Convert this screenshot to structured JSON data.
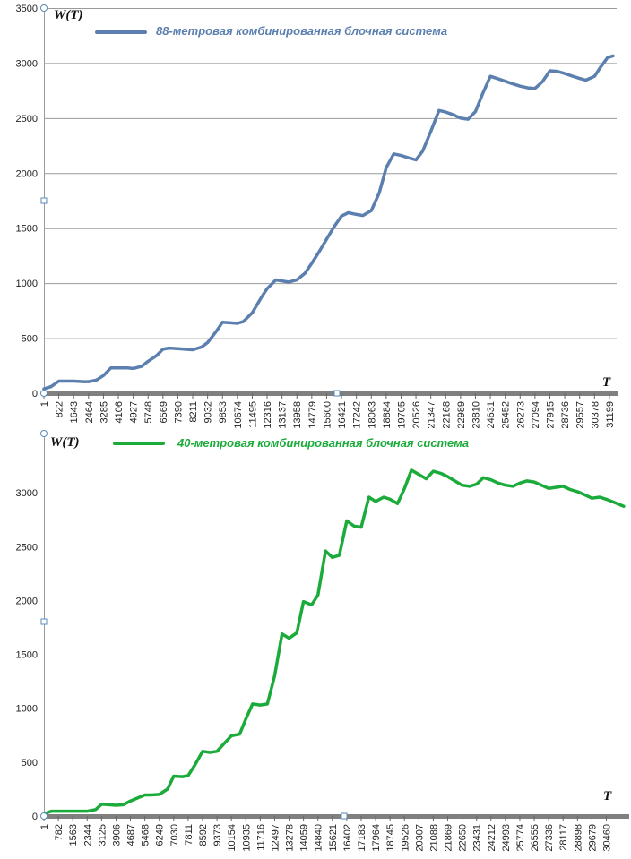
{
  "chart_data": [
    {
      "type": "line",
      "ylabel": "W(T)",
      "xlabel": "T",
      "ylim": [
        0,
        3500
      ],
      "yticks": [
        0,
        500,
        1000,
        1500,
        2000,
        2500,
        3000,
        3500
      ],
      "grid": true,
      "legend_position": "top-left",
      "xlim": [
        1,
        31600
      ],
      "xticks": [
        1,
        822,
        1643,
        2464,
        3285,
        4106,
        4927,
        5748,
        6569,
        7390,
        8211,
        9032,
        9853,
        10674,
        11495,
        12316,
        13137,
        13958,
        14779,
        15600,
        16421,
        17242,
        18063,
        18884,
        19705,
        20526,
        21347,
        22168,
        22989,
        23810,
        24631,
        25452,
        26273,
        27094,
        27915,
        28736,
        29557,
        30378,
        31199
      ],
      "series": [
        {
          "name": "88-метровая комбинированная блочная система",
          "color": "#5b7fae",
          "x": [
            1,
            400,
            822,
            1100,
            1643,
            2200,
            2464,
            2900,
            3285,
            3700,
            4106,
            4600,
            4927,
            5400,
            5748,
            6200,
            6569,
            6900,
            7390,
            7800,
            8211,
            8700,
            9032,
            9500,
            9853,
            10300,
            10674,
            11000,
            11495,
            12000,
            12316,
            12800,
            13137,
            13500,
            13958,
            14400,
            14779,
            15200,
            15600,
            16000,
            16421,
            16800,
            17242,
            17600,
            18063,
            18500,
            18884,
            19300,
            19705,
            20100,
            20526,
            20900,
            21347,
            21800,
            22168,
            22600,
            22989,
            23400,
            23810,
            24200,
            24631,
            25000,
            25452,
            25800,
            26273,
            26700,
            27094,
            27500,
            27915,
            28300,
            28736,
            29100,
            29557,
            29900,
            30378,
            30700,
            31100,
            31400
          ],
          "values": [
            40,
            60,
            110,
            110,
            110,
            105,
            105,
            120,
            160,
            230,
            230,
            230,
            225,
            245,
            290,
            340,
            400,
            410,
            405,
            400,
            395,
            420,
            460,
            560,
            645,
            640,
            635,
            650,
            730,
            870,
            950,
            1030,
            1020,
            1010,
            1030,
            1090,
            1180,
            1290,
            1400,
            1510,
            1610,
            1640,
            1625,
            1615,
            1660,
            1820,
            2050,
            2175,
            2160,
            2140,
            2120,
            2200,
            2380,
            2570,
            2555,
            2530,
            2500,
            2490,
            2560,
            2720,
            2880,
            2860,
            2835,
            2815,
            2790,
            2775,
            2770,
            2830,
            2930,
            2925,
            2905,
            2885,
            2860,
            2845,
            2880,
            2960,
            3050,
            3065
          ]
        }
      ]
    },
    {
      "type": "line",
      "ylabel": "W(T)",
      "xlabel": "T",
      "ylim": [
        0,
        3500
      ],
      "yticks": [
        0,
        500,
        1000,
        1500,
        2000,
        2500,
        3000
      ],
      "grid": false,
      "legend_position": "top-left",
      "xlim": [
        1,
        31600
      ],
      "xticks": [
        1,
        782,
        1563,
        2344,
        3125,
        3906,
        4687,
        5468,
        6249,
        7030,
        7811,
        8592,
        9373,
        10154,
        10935,
        11716,
        12497,
        13278,
        14059,
        14840,
        15621,
        16402,
        17183,
        17964,
        18745,
        19526,
        20307,
        21088,
        21869,
        22650,
        23431,
        24212,
        24993,
        25774,
        26555,
        27336,
        28117,
        28898,
        29679,
        30460
      ],
      "series": [
        {
          "name": "40-метровая комбинированная блочная система",
          "color": "#1aab3a",
          "x": [
            1,
            400,
            782,
            1563,
            2344,
            2800,
            3125,
            3906,
            4300,
            4687,
            5468,
            5800,
            6249,
            6700,
            7030,
            7500,
            7811,
            8200,
            8592,
            9000,
            9373,
            9800,
            10154,
            10600,
            10935,
            11300,
            11716,
            12100,
            12497,
            12900,
            13278,
            13700,
            14059,
            14500,
            14840,
            15250,
            15621,
            16000,
            16402,
            16800,
            17183,
            17600,
            17964,
            18400,
            18745,
            19150,
            19526,
            19900,
            20307,
            20700,
            21088,
            21500,
            21869,
            22250,
            22650,
            23050,
            23431,
            23800,
            24212,
            24600,
            24993,
            25400,
            25774,
            26150,
            26555,
            26950,
            27336,
            27700,
            28117,
            28500,
            28898,
            29300,
            29679,
            30100,
            30460,
            30900,
            31400
          ],
          "values": [
            20,
            45,
            45,
            45,
            45,
            60,
            110,
            100,
            105,
            140,
            195,
            195,
            200,
            250,
            370,
            365,
            375,
            480,
            600,
            590,
            600,
            680,
            745,
            760,
            900,
            1040,
            1030,
            1040,
            1300,
            1690,
            1650,
            1700,
            1990,
            1960,
            2050,
            2460,
            2400,
            2420,
            2740,
            2690,
            2680,
            2960,
            2920,
            2960,
            2940,
            2900,
            3040,
            3210,
            3170,
            3130,
            3200,
            3180,
            3150,
            3110,
            3070,
            3060,
            3080,
            3140,
            3120,
            3090,
            3070,
            3060,
            3090,
            3110,
            3100,
            3070,
            3040,
            3050,
            3060,
            3030,
            3010,
            2980,
            2950,
            2960,
            2940,
            2910,
            2875
          ]
        }
      ]
    }
  ]
}
